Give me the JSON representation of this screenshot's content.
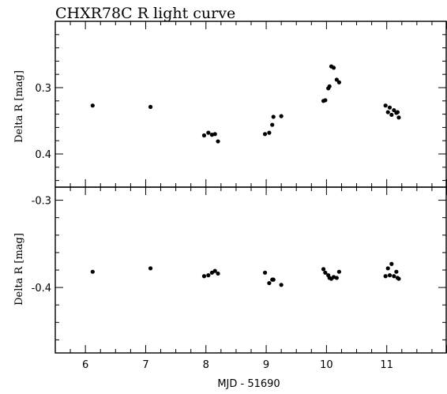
{
  "chart_data": [
    {
      "type": "scatter",
      "title": "CHXR78C  R light curve",
      "xlabel": "",
      "ylabel": "Delta R [mag]",
      "xlim": [
        5.5,
        12
      ],
      "ylim": [
        0.45,
        0.2
      ],
      "y_inverted": true,
      "x_ticks": [
        6,
        7,
        8,
        9,
        10,
        11
      ],
      "x_tick_labels": [],
      "y_ticks": [
        0.3,
        0.4
      ],
      "y_tick_labels": [
        "0.3",
        "0.4"
      ],
      "points": [
        {
          "x": 6.12,
          "y": 0.327
        },
        {
          "x": 7.08,
          "y": 0.329
        },
        {
          "x": 7.97,
          "y": 0.372
        },
        {
          "x": 8.04,
          "y": 0.368
        },
        {
          "x": 8.1,
          "y": 0.371
        },
        {
          "x": 8.15,
          "y": 0.37
        },
        {
          "x": 8.2,
          "y": 0.381
        },
        {
          "x": 8.98,
          "y": 0.37
        },
        {
          "x": 9.05,
          "y": 0.368
        },
        {
          "x": 9.1,
          "y": 0.356
        },
        {
          "x": 9.12,
          "y": 0.344
        },
        {
          "x": 9.25,
          "y": 0.343
        },
        {
          "x": 9.95,
          "y": 0.32
        },
        {
          "x": 9.98,
          "y": 0.319
        },
        {
          "x": 10.03,
          "y": 0.301
        },
        {
          "x": 10.05,
          "y": 0.298
        },
        {
          "x": 10.08,
          "y": 0.268
        },
        {
          "x": 10.12,
          "y": 0.27
        },
        {
          "x": 10.17,
          "y": 0.288
        },
        {
          "x": 10.21,
          "y": 0.292
        },
        {
          "x": 10.98,
          "y": 0.327
        },
        {
          "x": 11.02,
          "y": 0.337
        },
        {
          "x": 11.05,
          "y": 0.33
        },
        {
          "x": 11.08,
          "y": 0.341
        },
        {
          "x": 11.12,
          "y": 0.334
        },
        {
          "x": 11.16,
          "y": 0.338
        },
        {
          "x": 11.18,
          "y": 0.337
        },
        {
          "x": 11.2,
          "y": 0.345
        }
      ]
    },
    {
      "type": "scatter",
      "title": "",
      "xlabel": "MJD - 51690",
      "ylabel": "Delta R [mag]",
      "xlim": [
        5.5,
        12
      ],
      "ylim": [
        -0.475,
        -0.285
      ],
      "y_inverted": false,
      "x_ticks": [
        6,
        7,
        8,
        9,
        10,
        11
      ],
      "x_tick_labels": [
        "6",
        "7",
        "8",
        "9",
        "10",
        "11"
      ],
      "y_ticks": [
        -0.4,
        -0.3
      ],
      "y_tick_labels": [
        "-0.4",
        "-0.3"
      ],
      "points": [
        {
          "x": 6.12,
          "y": -0.382
        },
        {
          "x": 7.08,
          "y": -0.378
        },
        {
          "x": 7.97,
          "y": -0.387
        },
        {
          "x": 8.04,
          "y": -0.386
        },
        {
          "x": 8.1,
          "y": -0.383
        },
        {
          "x": 8.15,
          "y": -0.381
        },
        {
          "x": 8.2,
          "y": -0.384
        },
        {
          "x": 8.98,
          "y": -0.383
        },
        {
          "x": 9.05,
          "y": -0.395
        },
        {
          "x": 9.1,
          "y": -0.391
        },
        {
          "x": 9.12,
          "y": -0.391
        },
        {
          "x": 9.25,
          "y": -0.397
        },
        {
          "x": 9.95,
          "y": -0.379
        },
        {
          "x": 9.98,
          "y": -0.383
        },
        {
          "x": 10.03,
          "y": -0.386
        },
        {
          "x": 10.05,
          "y": -0.389
        },
        {
          "x": 10.08,
          "y": -0.39
        },
        {
          "x": 10.12,
          "y": -0.388
        },
        {
          "x": 10.17,
          "y": -0.389
        },
        {
          "x": 10.21,
          "y": -0.382
        },
        {
          "x": 10.98,
          "y": -0.387
        },
        {
          "x": 11.02,
          "y": -0.378
        },
        {
          "x": 11.05,
          "y": -0.386
        },
        {
          "x": 11.08,
          "y": -0.373
        },
        {
          "x": 11.12,
          "y": -0.387
        },
        {
          "x": 11.16,
          "y": -0.382
        },
        {
          "x": 11.18,
          "y": -0.389
        },
        {
          "x": 11.2,
          "y": -0.39
        }
      ]
    }
  ]
}
